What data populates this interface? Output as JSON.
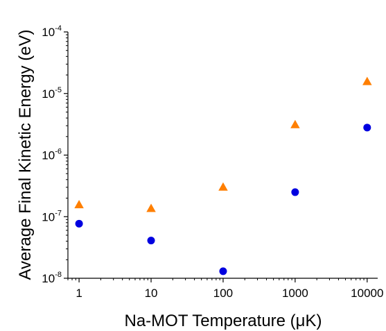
{
  "chart_data": {
    "type": "scatter",
    "title": "",
    "xlabel": "Na-MOT Temperature (μK)",
    "ylabel": "Average Final Kinetic Energy (eV)",
    "x_scale": "log",
    "y_scale": "log",
    "xlim": [
      0.7,
      14000
    ],
    "ylim": [
      1e-08,
      0.0001
    ],
    "x_ticks": [
      {
        "value": 1,
        "label": "1"
      },
      {
        "value": 10,
        "label": "10"
      },
      {
        "value": 100,
        "label": "100"
      },
      {
        "value": 1000,
        "label": "1000"
      },
      {
        "value": 10000,
        "label": "10000"
      }
    ],
    "y_ticks": [
      {
        "value": 1e-08,
        "base": "10",
        "exp": "-8"
      },
      {
        "value": 1e-07,
        "base": "10",
        "exp": "-7"
      },
      {
        "value": 1e-06,
        "base": "10",
        "exp": "-6"
      },
      {
        "value": 1e-05,
        "base": "10",
        "exp": "-5"
      },
      {
        "value": 0.0001,
        "base": "10",
        "exp": "-4"
      }
    ],
    "grid": false,
    "legend": "none",
    "series": [
      {
        "marker": "triangle",
        "color": "#FF7F00",
        "x": [
          1,
          10,
          100,
          1000,
          10000
        ],
        "y": [
          1.55e-07,
          1.35e-07,
          3e-07,
          3.1e-06,
          1.55e-05
        ]
      },
      {
        "marker": "circle",
        "color": "#0000E0",
        "x": [
          1,
          10,
          100,
          1000,
          10000
        ],
        "y": [
          7.7e-08,
          4.1e-08,
          1.3e-08,
          2.5e-07,
          2.8e-06
        ]
      }
    ]
  }
}
